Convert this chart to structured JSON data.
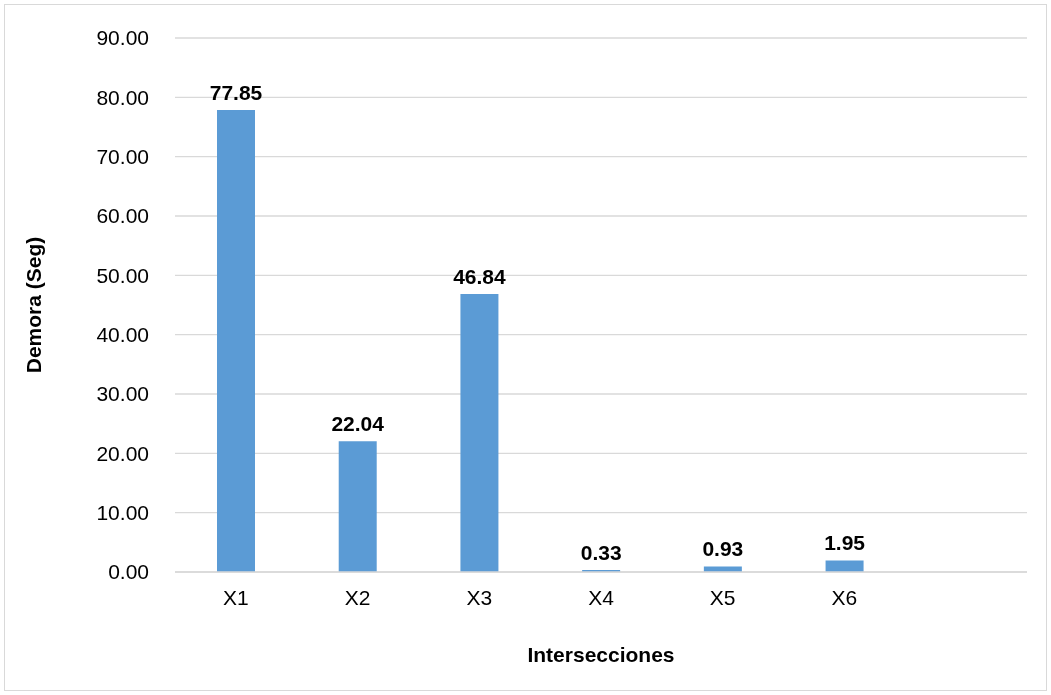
{
  "chart_data": {
    "type": "bar",
    "xlabel": "Intersecciones",
    "ylabel": "Demora (Seg)",
    "categories": [
      "X1",
      "X2",
      "X3",
      "X4",
      "X5",
      "X6",
      null
    ],
    "values": [
      77.85,
      22.04,
      46.84,
      0.33,
      0.93,
      1.95,
      null
    ],
    "color": "#5b9bd5",
    "data_labels": true,
    "ylim": [
      0,
      90
    ],
    "yticks": [
      {
        "value": 0,
        "label": "0.00"
      },
      {
        "value": 10,
        "label": "10.00"
      },
      {
        "value": 20,
        "label": "20.00"
      },
      {
        "value": 30,
        "label": "30.00"
      },
      {
        "value": 40,
        "label": "40.00"
      },
      {
        "value": 50,
        "label": "50.00"
      },
      {
        "value": 60,
        "label": "60.00"
      },
      {
        "value": 70,
        "label": "70.00"
      },
      {
        "value": 80,
        "label": "80.00"
      },
      {
        "value": 90,
        "label": "90.00"
      }
    ],
    "grid": "y",
    "legend": false
  }
}
